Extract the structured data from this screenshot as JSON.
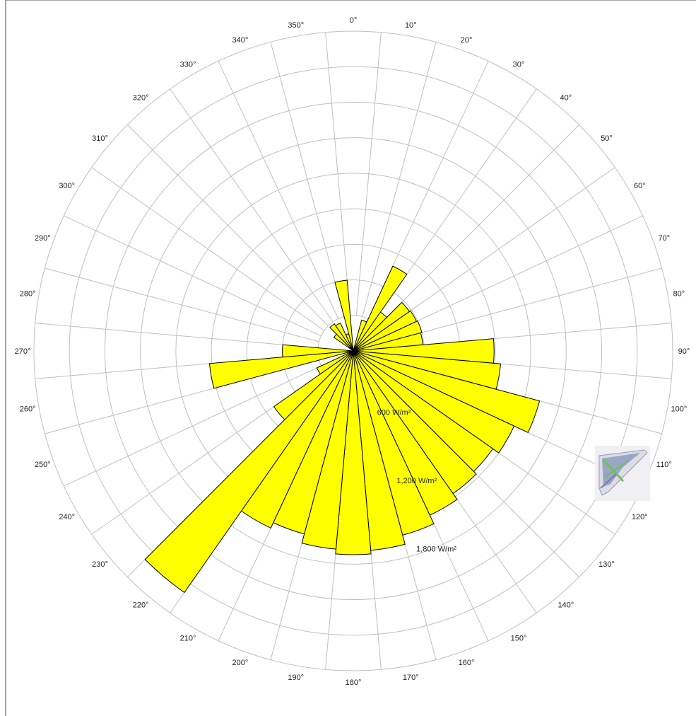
{
  "colors": {
    "bar_fill": "#ffff00",
    "bar_stroke": "#000000",
    "grid": "#bfbfbf",
    "frame": "#4a4a4a"
  },
  "thumbnail_icon": "building-thumbnail-icon",
  "chart_data": {
    "type": "polar-bar",
    "title": "",
    "direction_labels": [
      "0°",
      "10°",
      "20°",
      "30°",
      "40°",
      "50°",
      "60°",
      "70°",
      "80°",
      "90°",
      "100°",
      "110°",
      "120°",
      "130°",
      "140°",
      "150°",
      "160°",
      "170°",
      "180°",
      "190°",
      "200°",
      "210°",
      "220°",
      "230°",
      "240°",
      "250°",
      "260°",
      "270°",
      "280°",
      "290°",
      "300°",
      "310°",
      "320°",
      "330°",
      "340°",
      "350°"
    ],
    "radial_labels": [
      "600 W/m²",
      "1,200 W/m²",
      "1,800 W/m²"
    ],
    "radial_ticks": [
      600,
      1200,
      1800
    ],
    "rmax": 2700,
    "grid": true,
    "categories": [
      0,
      10,
      20,
      30,
      40,
      50,
      60,
      70,
      80,
      90,
      100,
      110,
      120,
      130,
      140,
      150,
      160,
      170,
      180,
      190,
      200,
      210,
      220,
      230,
      240,
      250,
      260,
      270,
      280,
      290,
      300,
      310,
      320,
      330,
      340,
      350
    ],
    "values": [
      0,
      0,
      270,
      790,
      400,
      580,
      590,
      600,
      590,
      1190,
      1250,
      1630,
      1500,
      1440,
      1470,
      1530,
      1610,
      1690,
      1720,
      1680,
      1600,
      1650,
      2490,
      820,
      340,
      0,
      1220,
      600,
      0,
      0,
      0,
      200,
      280,
      260,
      150,
      600
    ]
  }
}
